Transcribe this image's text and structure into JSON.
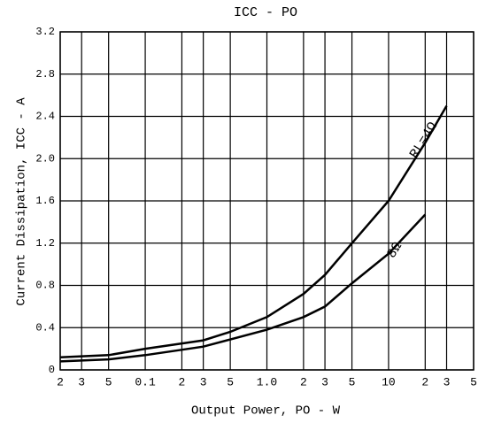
{
  "chart_data": {
    "type": "line",
    "title": "ICC - PO",
    "x_label": "Output Power, PO - W",
    "y_label": "Current Dissipation, ICC - A",
    "log_x": true,
    "grid": true,
    "xlim": [
      0.02,
      50
    ],
    "ylim": [
      0,
      3.2
    ],
    "xticks": [
      {
        "value": 0.02,
        "label": "2"
      },
      {
        "value": 0.03,
        "label": "3"
      },
      {
        "value": 0.05,
        "label": "5"
      },
      0.1,
      {
        "value": 0.2,
        "label": "2"
      },
      {
        "value": 0.3,
        "label": "3"
      },
      {
        "value": 0.5,
        "label": "5"
      },
      {
        "value": 1,
        "label": "1.0"
      },
      {
        "value": 2,
        "label": "2"
      },
      {
        "value": 3,
        "label": "3"
      },
      {
        "value": 5,
        "label": "5"
      },
      10,
      {
        "value": 20,
        "label": "2"
      },
      {
        "value": 30,
        "label": "3"
      },
      {
        "value": 50,
        "label": "5"
      }
    ],
    "yticks": [
      0,
      0.4,
      0.8,
      1.2,
      1.6,
      {
        "value": 2,
        "label": "2.0"
      },
      2.4,
      2.8,
      3.2
    ],
    "series": [
      {
        "name": "RL=4Ω",
        "color": "#000000",
        "x": [
          0.02,
          0.05,
          0.1,
          0.3,
          0.5,
          1,
          2,
          3,
          5,
          10,
          20,
          30
        ],
        "values": [
          0.12,
          0.14,
          0.2,
          0.28,
          0.36,
          0.5,
          0.72,
          0.9,
          1.2,
          1.6,
          2.15,
          2.5
        ]
      },
      {
        "name": "8Ω",
        "color": "#000000",
        "x": [
          0.02,
          0.05,
          0.1,
          0.3,
          1,
          2,
          3,
          5,
          10,
          20
        ],
        "values": [
          0.08,
          0.1,
          0.14,
          0.22,
          0.38,
          0.5,
          0.6,
          0.82,
          1.1,
          1.47
        ]
      }
    ]
  }
}
